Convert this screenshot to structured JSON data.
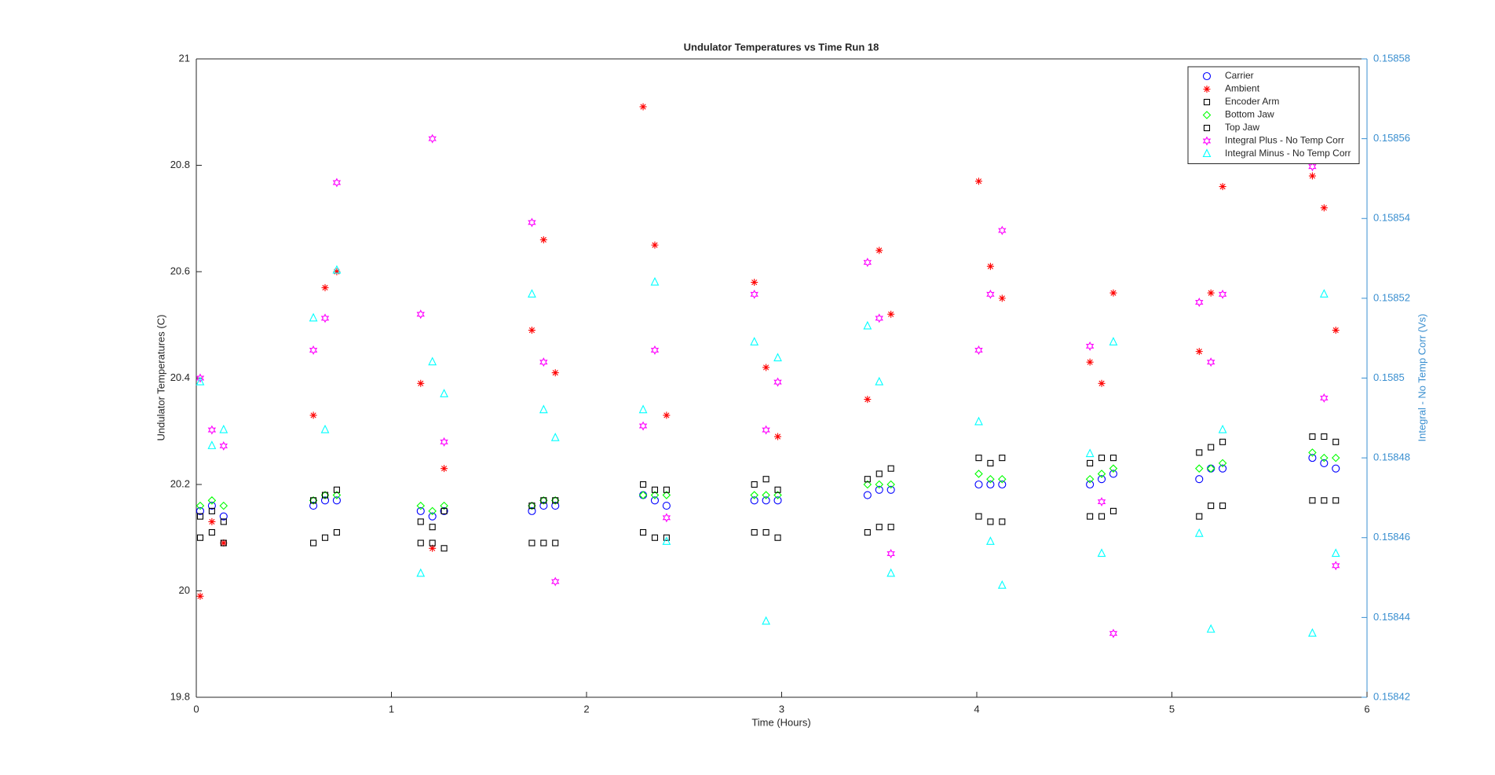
{
  "chart_data": {
    "type": "scatter",
    "title": "Undulator Temperatures vs Time Run 18",
    "xlabel": "Time (Hours)",
    "ylabel": "Undulator Temperatures (C)",
    "y2label": "Integral -  No Temp Corr (Vs)",
    "y2color": "#3a8fd0",
    "legend": "northeast",
    "xlim": [
      0,
      6
    ],
    "xticks": [
      0,
      1,
      2,
      3,
      4,
      5,
      6
    ],
    "ylim": [
      19.8,
      21
    ],
    "yticks": [
      19.8,
      20,
      20.2,
      20.4,
      20.6,
      20.8,
      21
    ],
    "y2lim": [
      0.15842,
      0.15858
    ],
    "y2ticks": [
      0.15842,
      0.15844,
      0.15846,
      0.15848,
      0.1585,
      0.15852,
      0.15854,
      0.15856,
      0.15858
    ],
    "series": [
      {
        "name": "Carrier",
        "color": "#0000ff",
        "marker": "circle",
        "x": [
          0.02,
          0.08,
          0.14,
          0.6,
          0.66,
          0.72,
          1.15,
          1.21,
          1.27,
          1.72,
          1.78,
          1.84,
          2.29,
          2.35,
          2.41,
          2.86,
          2.92,
          2.98,
          3.44,
          3.5,
          3.56,
          4.01,
          4.07,
          4.13,
          4.58,
          4.64,
          4.7,
          5.14,
          5.2,
          5.26,
          5.72,
          5.78,
          5.84
        ],
        "values": [
          20.15,
          20.16,
          20.14,
          20.16,
          20.17,
          20.17,
          20.15,
          20.14,
          20.15,
          20.15,
          20.16,
          20.16,
          20.18,
          20.17,
          20.16,
          20.17,
          20.17,
          20.17,
          20.18,
          20.19,
          20.19,
          20.2,
          20.2,
          20.2,
          20.2,
          20.21,
          20.22,
          20.21,
          20.23,
          20.23,
          20.25,
          20.24,
          20.23
        ]
      },
      {
        "name": "Ambient",
        "color": "#ff0000",
        "marker": "asterisk",
        "x": [
          0.02,
          0.08,
          0.14,
          0.6,
          0.66,
          0.72,
          1.15,
          1.21,
          1.27,
          1.72,
          1.78,
          1.84,
          2.29,
          2.35,
          2.41,
          2.86,
          2.92,
          2.98,
          3.44,
          3.5,
          3.56,
          4.01,
          4.07,
          4.13,
          4.58,
          4.64,
          4.7,
          5.14,
          5.2,
          5.26,
          5.72,
          5.78,
          5.84
        ],
        "values": [
          19.99,
          20.13,
          20.09,
          20.33,
          20.57,
          20.6,
          20.39,
          20.08,
          20.23,
          20.49,
          20.66,
          20.41,
          20.91,
          20.65,
          20.33,
          20.58,
          20.42,
          20.29,
          20.36,
          20.64,
          20.52,
          20.77,
          20.61,
          20.55,
          20.43,
          20.39,
          20.56,
          20.45,
          20.56,
          20.76,
          20.78,
          20.72,
          20.49
        ]
      },
      {
        "name": "Encoder Arm",
        "color": "#000000",
        "marker": "square",
        "x": [
          0.02,
          0.08,
          0.14,
          0.6,
          0.66,
          0.72,
          1.15,
          1.21,
          1.27,
          1.72,
          1.78,
          1.84,
          2.29,
          2.35,
          2.41,
          2.86,
          2.92,
          2.98,
          3.44,
          3.5,
          3.56,
          4.01,
          4.07,
          4.13,
          4.58,
          4.64,
          4.7,
          5.14,
          5.2,
          5.26,
          5.72,
          5.78,
          5.84
        ],
        "values": [
          20.1,
          20.11,
          20.09,
          20.09,
          20.1,
          20.11,
          20.09,
          20.09,
          20.08,
          20.09,
          20.09,
          20.09,
          20.11,
          20.1,
          20.1,
          20.11,
          20.11,
          20.1,
          20.11,
          20.12,
          20.12,
          20.14,
          20.13,
          20.13,
          20.14,
          20.14,
          20.15,
          20.14,
          20.16,
          20.16,
          20.17,
          20.17,
          20.17
        ]
      },
      {
        "name": "Bottom Jaw",
        "color": "#00ff00",
        "marker": "diamond",
        "x": [
          0.02,
          0.08,
          0.14,
          0.6,
          0.66,
          0.72,
          1.15,
          1.21,
          1.27,
          1.72,
          1.78,
          1.84,
          2.29,
          2.35,
          2.41,
          2.86,
          2.92,
          2.98,
          3.44,
          3.5,
          3.56,
          4.01,
          4.07,
          4.13,
          4.58,
          4.64,
          4.7,
          5.14,
          5.2,
          5.26,
          5.72,
          5.78,
          5.84
        ],
        "values": [
          20.16,
          20.17,
          20.16,
          20.17,
          20.18,
          20.18,
          20.16,
          20.15,
          20.16,
          20.16,
          20.17,
          20.17,
          20.18,
          20.18,
          20.18,
          20.18,
          20.18,
          20.18,
          20.2,
          20.2,
          20.2,
          20.22,
          20.21,
          20.21,
          20.21,
          20.22,
          20.23,
          20.23,
          20.23,
          20.24,
          20.26,
          20.25,
          20.25
        ]
      },
      {
        "name": "Top Jaw",
        "color": "#000000",
        "marker": "square",
        "x": [
          0.02,
          0.08,
          0.14,
          0.6,
          0.66,
          0.72,
          1.15,
          1.21,
          1.27,
          1.72,
          1.78,
          1.84,
          2.29,
          2.35,
          2.41,
          2.86,
          2.92,
          2.98,
          3.44,
          3.5,
          3.56,
          4.01,
          4.07,
          4.13,
          4.58,
          4.64,
          4.7,
          5.14,
          5.2,
          5.26,
          5.72,
          5.78,
          5.84
        ],
        "values": [
          20.14,
          20.15,
          20.13,
          20.17,
          20.18,
          20.19,
          20.13,
          20.12,
          20.15,
          20.16,
          20.17,
          20.17,
          20.2,
          20.19,
          20.19,
          20.2,
          20.21,
          20.19,
          20.21,
          20.22,
          20.23,
          20.25,
          20.24,
          20.25,
          20.24,
          20.25,
          20.25,
          20.26,
          20.27,
          20.28,
          20.29,
          20.29,
          20.28
        ]
      },
      {
        "name": "Integral Plus -  No Temp Corr",
        "color": "#ff00ff",
        "marker": "hexagram",
        "axis": "y2",
        "x": [
          0.02,
          0.08,
          0.14,
          0.6,
          0.66,
          0.72,
          1.15,
          1.21,
          1.27,
          1.72,
          1.78,
          1.84,
          2.29,
          2.35,
          2.41,
          2.86,
          2.92,
          2.98,
          3.44,
          3.5,
          3.56,
          4.01,
          4.07,
          4.13,
          4.58,
          4.64,
          4.7,
          5.14,
          5.2,
          5.26,
          5.72,
          5.78,
          5.84
        ],
        "values": [
          0.1585,
          0.158487,
          0.158483,
          0.158507,
          0.158515,
          0.158549,
          0.158516,
          0.15856,
          0.158484,
          0.158539,
          0.158504,
          0.158449,
          0.158488,
          0.158507,
          0.158465,
          0.158521,
          0.158487,
          0.158499,
          0.158529,
          0.158515,
          0.158456,
          0.158507,
          0.158521,
          0.158537,
          0.158508,
          0.158469,
          0.158436,
          0.158519,
          0.158504,
          0.158521,
          0.158553,
          0.158495,
          0.158453
        ]
      },
      {
        "name": "Integral Minus -  No Temp Corr",
        "color": "#00ffff",
        "marker": "triangle",
        "axis": "y2",
        "x": [
          0.02,
          0.08,
          0.14,
          0.6,
          0.66,
          0.72,
          1.15,
          1.21,
          1.27,
          1.72,
          1.78,
          1.84,
          2.29,
          2.35,
          2.41,
          2.86,
          2.92,
          2.98,
          3.44,
          3.5,
          3.56,
          4.01,
          4.07,
          4.13,
          4.58,
          4.64,
          4.7,
          5.14,
          5.2,
          5.26,
          5.72,
          5.78,
          5.84
        ],
        "values": [
          0.158499,
          0.158483,
          0.158487,
          0.158515,
          0.158487,
          0.158527,
          0.158451,
          0.158504,
          0.158496,
          0.158521,
          0.158492,
          0.158485,
          0.158492,
          0.158524,
          0.158459,
          0.158509,
          0.158439,
          0.158505,
          0.158513,
          0.158499,
          0.158451,
          0.158489,
          0.158459,
          0.158448,
          0.158481,
          0.158456,
          0.158509,
          0.158461,
          0.158437,
          0.158487,
          0.158436,
          0.158521,
          0.158456
        ]
      }
    ]
  }
}
